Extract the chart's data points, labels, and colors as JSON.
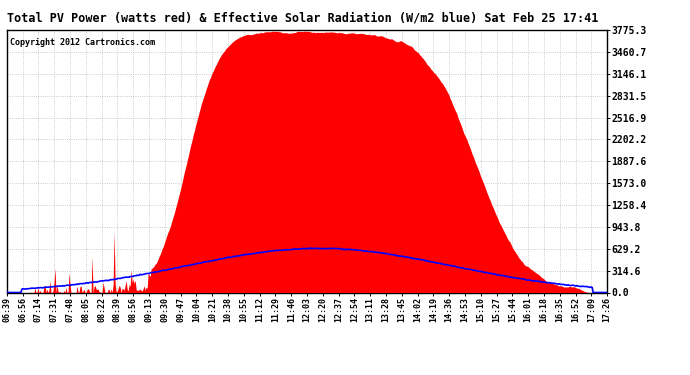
{
  "title": "Total PV Power (watts red) & Effective Solar Radiation (W/m2 blue) Sat Feb 25 17:41",
  "copyright": "Copyright 2012 Cartronics.com",
  "ymin": 0.0,
  "ymax": 3775.3,
  "ytick_interval": 314.6,
  "ytick_labels": [
    "0.0",
    "314.6",
    "629.2",
    "943.8",
    "1258.4",
    "1573.0",
    "1887.6",
    "2202.2",
    "2516.9",
    "2831.5",
    "3146.1",
    "3460.7",
    "3775.3"
  ],
  "background_color": "#ffffff",
  "plot_bg_color": "#ffffff",
  "grid_color": "#bbbbbb",
  "red_fill_color": "#ff0000",
  "blue_line_color": "#0000ff",
  "xtick_labels": [
    "06:39",
    "06:56",
    "07:14",
    "07:31",
    "07:48",
    "08:05",
    "08:22",
    "08:39",
    "08:56",
    "09:13",
    "09:30",
    "09:47",
    "10:04",
    "10:21",
    "10:38",
    "10:55",
    "11:12",
    "11:29",
    "11:46",
    "12:03",
    "12:20",
    "12:37",
    "12:54",
    "13:11",
    "13:28",
    "13:45",
    "14:02",
    "14:19",
    "14:36",
    "14:53",
    "15:10",
    "15:27",
    "15:44",
    "16:01",
    "16:18",
    "16:35",
    "16:52",
    "17:09",
    "17:26"
  ],
  "n_points": 600
}
